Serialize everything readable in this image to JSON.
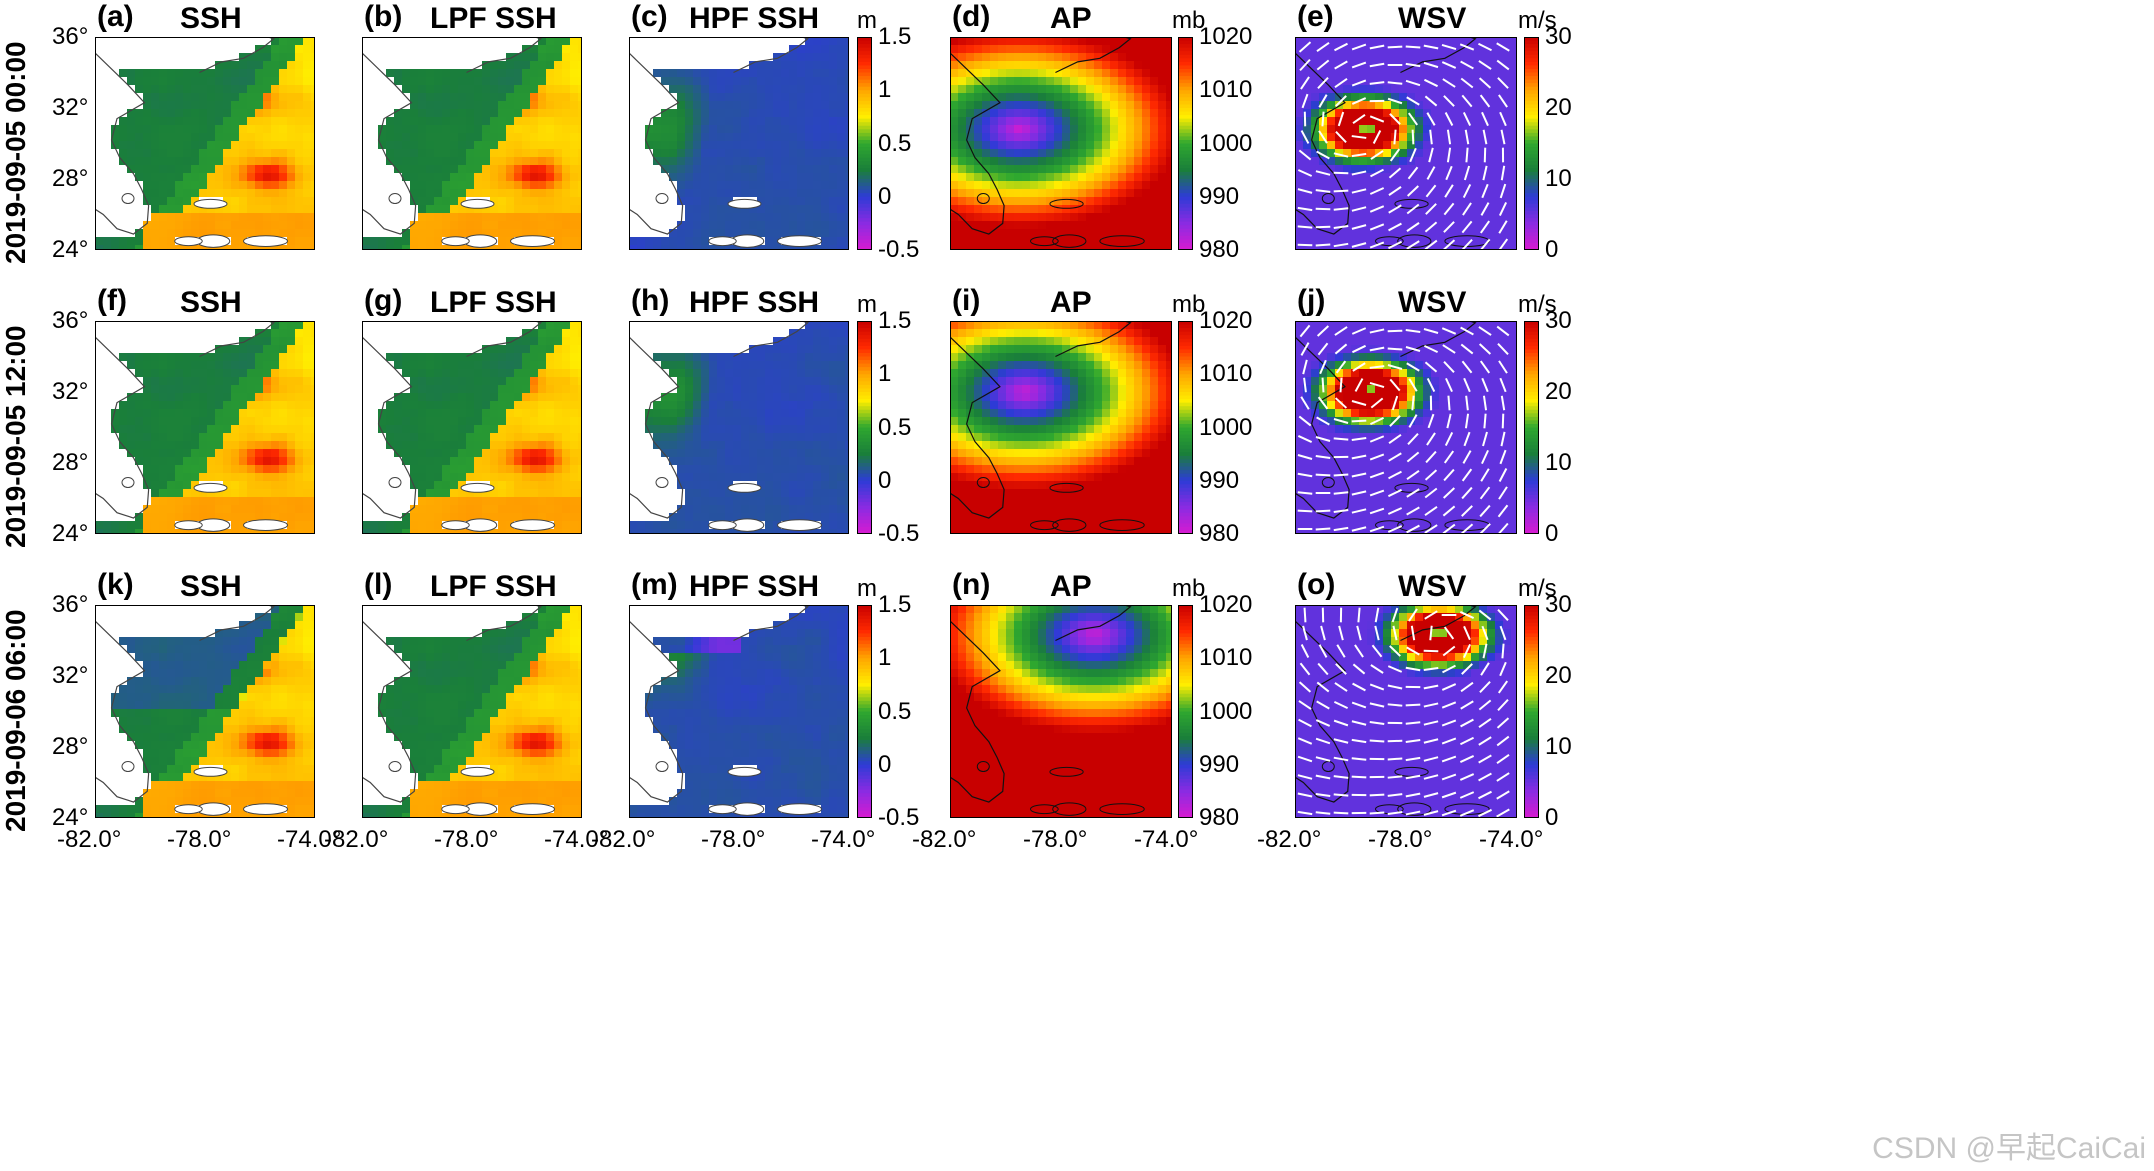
{
  "rows": [
    {
      "date": "2019-09-05 00:00"
    },
    {
      "date": "2019-09-05 12:00"
    },
    {
      "date": "2019-09-06 06:00"
    }
  ],
  "columns": [
    {
      "title": "SSH",
      "field": "ssh",
      "colorbar": null
    },
    {
      "title": "LPF SSH",
      "field": "lpf",
      "colorbar": null
    },
    {
      "title": "HPF SSH",
      "field": "hpf",
      "colorbar": {
        "unit": "m",
        "ticks": [
          "1.5",
          "1",
          "0.5",
          "0",
          "-0.5"
        ],
        "range": [
          -0.5,
          1.5
        ]
      }
    },
    {
      "title": "AP",
      "field": "ap",
      "colorbar": {
        "unit": "mb",
        "ticks": [
          "1020",
          "1010",
          "1000",
          "990",
          "980"
        ],
        "range": [
          980,
          1020
        ]
      }
    },
    {
      "title": "WSV",
      "field": "wsv",
      "colorbar": {
        "unit": "m/s",
        "ticks": [
          "30",
          "20",
          "10",
          "0"
        ],
        "range": [
          0,
          30
        ]
      }
    }
  ],
  "panel_labels": [
    "(a)",
    "(b)",
    "(c)",
    "(d)",
    "(e)",
    "(f)",
    "(g)",
    "(h)",
    "(i)",
    "(j)",
    "(k)",
    "(l)",
    "(m)",
    "(n)",
    "(o)"
  ],
  "axis": {
    "lat_ticks": [
      "36°",
      "32°",
      "28°",
      "24°"
    ],
    "lon_ticks": [
      "-82.0°",
      "-78.0°",
      "-74.0°"
    ],
    "lon_range": [
      -82,
      -74
    ],
    "lat_range": [
      24,
      36
    ]
  },
  "chart_data": {
    "type": "heatmap",
    "description_fields": [
      "SSH",
      "LPF SSH",
      "HPF SSH",
      "AP",
      "WSV"
    ],
    "storm_center": [
      {
        "date": "2019-09-05 00:00",
        "lon": -79.5,
        "lat": 30.8,
        "min_pressure_mb": 980,
        "max_wind_ms": 30
      },
      {
        "date": "2019-09-05 12:00",
        "lon": -79.3,
        "lat": 32.0,
        "min_pressure_mb": 980,
        "max_wind_ms": 30
      },
      {
        "date": "2019-09-06 06:00",
        "lon": -76.8,
        "lat": 34.3,
        "min_pressure_mb": 980,
        "max_wind_ms": 30
      }
    ],
    "colorbars": {
      "ssh": {
        "unit": "m",
        "range": [
          -0.5,
          1.5
        ],
        "ticks": [
          -0.5,
          0,
          0.5,
          1,
          1.5
        ]
      },
      "ap": {
        "unit": "mb",
        "range": [
          980,
          1020
        ],
        "ticks": [
          980,
          990,
          1000,
          1010,
          1020
        ]
      },
      "wsv": {
        "unit": "m/s",
        "range": [
          0,
          30
        ],
        "ticks": [
          0,
          10,
          20,
          30
        ]
      }
    },
    "colormap": [
      "#d81bd0",
      "#8a2be2",
      "#2d3bd6",
      "#1a7f3a",
      "#2fa82f",
      "#ffee00",
      "#ffa500",
      "#ff2a00",
      "#c80000"
    ]
  },
  "watermark": "CSDN @早起CaiCai"
}
